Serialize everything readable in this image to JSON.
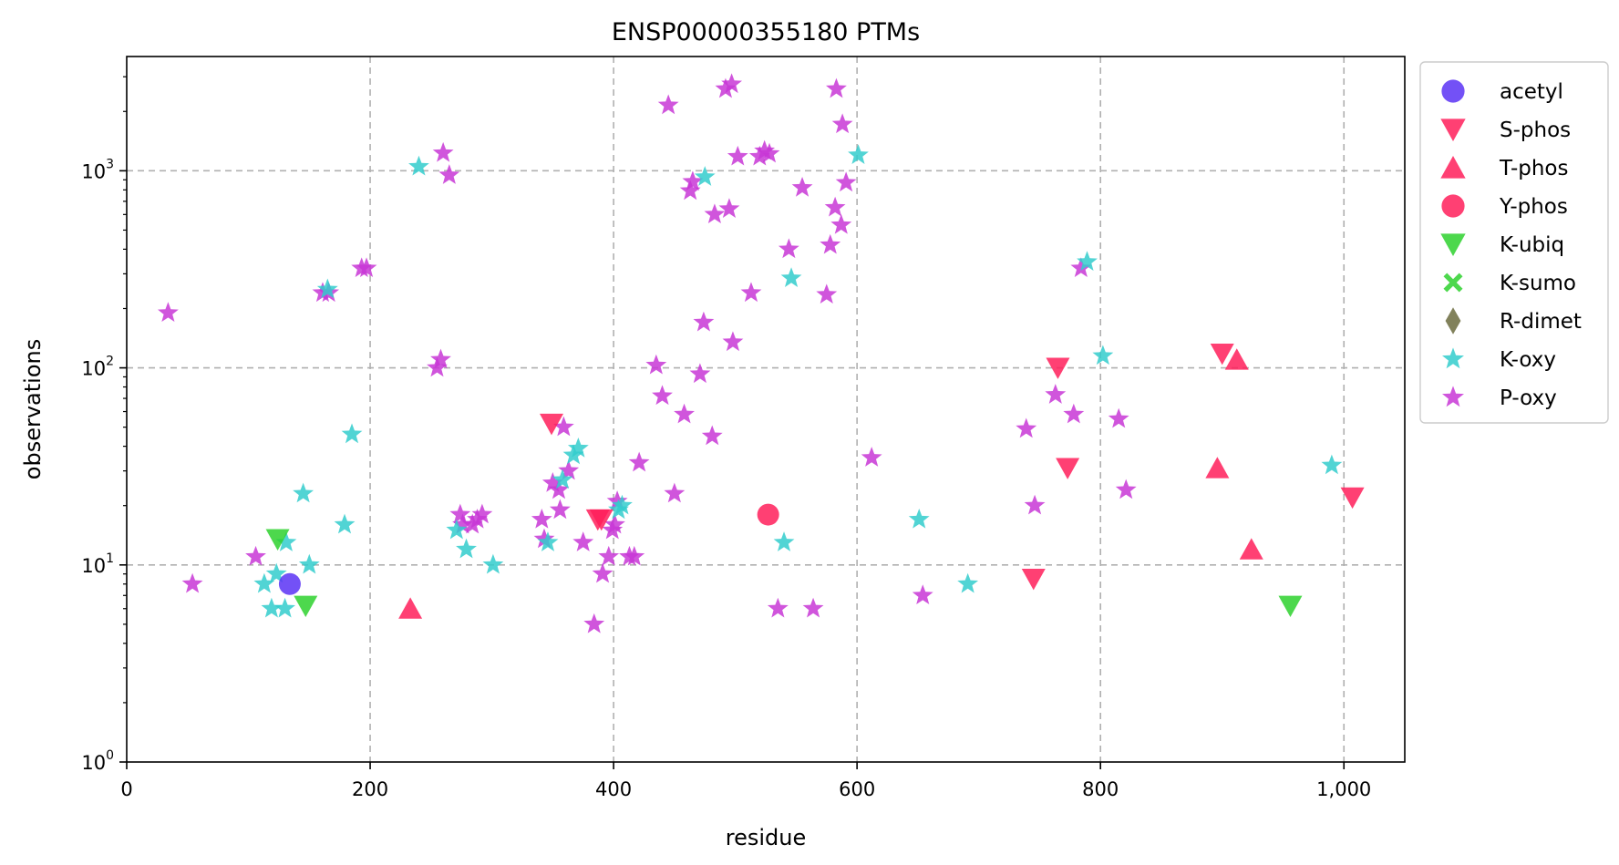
{
  "chart_data": {
    "type": "scatter",
    "title": "ENSP00000355180 PTMs",
    "xlabel": "residue",
    "ylabel": "observations",
    "xlim": [
      0,
      1050
    ],
    "ylim": [
      1,
      3800
    ],
    "y_scale": "log",
    "grid": true,
    "legend_position": "outside-right",
    "x_ticks": [
      {
        "value": 0,
        "label": "0"
      },
      {
        "value": 200,
        "label": "200"
      },
      {
        "value": 400,
        "label": "400"
      },
      {
        "value": 600,
        "label": "600"
      },
      {
        "value": 800,
        "label": "800"
      },
      {
        "value": 1000,
        "label": "1,000"
      }
    ],
    "y_ticks": [
      {
        "value": 1,
        "base": "10",
        "exp": "0"
      },
      {
        "value": 10,
        "base": "10",
        "exp": "1"
      },
      {
        "value": 100,
        "base": "10",
        "exp": "2"
      },
      {
        "value": 1000,
        "base": "10",
        "exp": "3"
      }
    ],
    "series": [
      {
        "name": "acetyl",
        "marker": "circle",
        "color": "#5a32f5",
        "points": [
          [
            134,
            8
          ]
        ]
      },
      {
        "name": "S-phos",
        "marker": "triangle-down",
        "color": "#ff1f5b",
        "points": [
          [
            349,
            52
          ],
          [
            387,
            17
          ],
          [
            390,
            17
          ],
          [
            765,
            100
          ],
          [
            773,
            31
          ],
          [
            745,
            8.5
          ],
          [
            900,
            118
          ],
          [
            1007,
            22
          ]
        ]
      },
      {
        "name": "T-phos",
        "marker": "triangle-up",
        "color": "#ff1f5b",
        "points": [
          [
            233,
            6
          ],
          [
            912,
            110
          ],
          [
            896,
            31
          ],
          [
            924,
            12
          ]
        ]
      },
      {
        "name": "Y-phos",
        "marker": "circle",
        "color": "#ff1f5b",
        "points": [
          [
            527,
            18
          ]
        ]
      },
      {
        "name": "K-ubiq",
        "marker": "triangle-down",
        "color": "#2ed12e",
        "points": [
          [
            124,
            13.5
          ],
          [
            147,
            6.2
          ],
          [
            956,
            6.2
          ]
        ]
      },
      {
        "name": "K-sumo",
        "marker": "x",
        "color": "#2ed12e",
        "points": []
      },
      {
        "name": "R-dimet",
        "marker": "diamond",
        "color": "#6b6b3e",
        "points": []
      },
      {
        "name": "K-oxy",
        "marker": "star",
        "color": "#33cccc",
        "points": [
          [
            113,
            8
          ],
          [
            119,
            6
          ],
          [
            123,
            9
          ],
          [
            130,
            6
          ],
          [
            131,
            13
          ],
          [
            145,
            23
          ],
          [
            150,
            10
          ],
          [
            165,
            250
          ],
          [
            179,
            16
          ],
          [
            185,
            46
          ],
          [
            240,
            1050
          ],
          [
            271,
            15
          ],
          [
            279,
            12
          ],
          [
            301,
            10
          ],
          [
            346,
            13
          ],
          [
            358,
            27
          ],
          [
            367,
            36
          ],
          [
            371,
            39
          ],
          [
            404,
            19
          ],
          [
            407,
            20
          ],
          [
            475,
            930
          ],
          [
            540,
            13
          ],
          [
            546,
            285
          ],
          [
            601,
            1200
          ],
          [
            651,
            17
          ],
          [
            691,
            8
          ],
          [
            789,
            345
          ],
          [
            802,
            115
          ],
          [
            990,
            32
          ]
        ]
      },
      {
        "name": "P-oxy",
        "marker": "star",
        "color": "#c837d6",
        "points": [
          [
            34,
            190
          ],
          [
            54,
            8
          ],
          [
            106,
            11
          ],
          [
            161,
            240
          ],
          [
            166,
            240
          ],
          [
            193,
            320
          ],
          [
            197,
            320
          ],
          [
            255,
            100
          ],
          [
            258,
            110
          ],
          [
            260,
            1230
          ],
          [
            265,
            950
          ],
          [
            274,
            18
          ],
          [
            276,
            16
          ],
          [
            284,
            16
          ],
          [
            288,
            17
          ],
          [
            292,
            18
          ],
          [
            341,
            17
          ],
          [
            343,
            13.5
          ],
          [
            350,
            26
          ],
          [
            355,
            24
          ],
          [
            356,
            19
          ],
          [
            359,
            50
          ],
          [
            363,
            30
          ],
          [
            375,
            13
          ],
          [
            384,
            5
          ],
          [
            391,
            9
          ],
          [
            396,
            11
          ],
          [
            399,
            15
          ],
          [
            401,
            16
          ],
          [
            403,
            21
          ],
          [
            413,
            11
          ],
          [
            417,
            11
          ],
          [
            421,
            33
          ],
          [
            435,
            103
          ],
          [
            440,
            72
          ],
          [
            445,
            2150
          ],
          [
            450,
            23
          ],
          [
            458,
            58
          ],
          [
            463,
            790
          ],
          [
            465,
            880
          ],
          [
            471,
            93
          ],
          [
            474,
            170
          ],
          [
            481,
            45
          ],
          [
            483,
            600
          ],
          [
            492,
            2600
          ],
          [
            495,
            640
          ],
          [
            497,
            2750
          ],
          [
            498,
            135
          ],
          [
            502,
            1180
          ],
          [
            513,
            240
          ],
          [
            520,
            1180
          ],
          [
            524,
            1260
          ],
          [
            528,
            1220
          ],
          [
            535,
            6
          ],
          [
            544,
            400
          ],
          [
            555,
            820
          ],
          [
            564,
            6
          ],
          [
            575,
            235
          ],
          [
            578,
            420
          ],
          [
            582,
            650
          ],
          [
            583,
            2600
          ],
          [
            587,
            530
          ],
          [
            588,
            1720
          ],
          [
            591,
            870
          ],
          [
            612,
            35
          ],
          [
            654,
            7
          ],
          [
            739,
            49
          ],
          [
            746,
            20
          ],
          [
            763,
            73
          ],
          [
            778,
            58
          ],
          [
            784,
            320
          ],
          [
            815,
            55
          ],
          [
            821,
            24
          ]
        ]
      }
    ]
  }
}
